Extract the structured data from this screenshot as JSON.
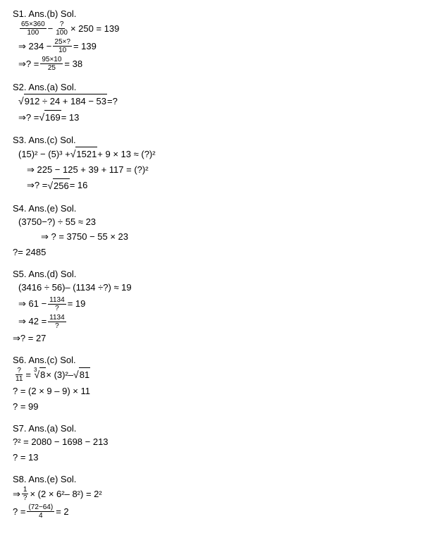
{
  "solutions": [
    {
      "header": "S1. Ans.(b) Sol.",
      "lines": [
        {
          "html": "<span class='frac'><span class='num'>65×360</span><span class='den'>100</span></span> − <span class='frac'><span class='num'>?</span><span class='den'>100</span></span> × 250 = 139",
          "indent": 1
        },
        {
          "html": "⇒ 234 − <span class='frac'><span class='num'>25×?</span><span class='den'>10</span></span> = 139",
          "indent": 1
        },
        {
          "html": "⇒? = <span class='frac'><span class='num'>95×10</span><span class='den'>25</span></span> = 38",
          "indent": 1
        }
      ]
    },
    {
      "header": "S2. Ans.(a) Sol.",
      "lines": [
        {
          "html": "<span class='sqrt'><span class='sqrt-sym'>√</span><span class='sqrt-body'>912 ÷ 24 + 184 − 53</span></span> =?",
          "indent": 1
        },
        {
          "html": "⇒? = <span class='sqrt'><span class='sqrt-sym'>√</span><span class='sqrt-body'>169</span></span> = 13",
          "indent": 1
        }
      ]
    },
    {
      "header": "S3. Ans.(c) Sol.",
      "lines": [
        {
          "html": "(15)² − (5)³ + <span class='sqrt'><span class='sqrt-sym'>√</span><span class='sqrt-body'>1521</span></span> + 9 × 13 ≈ (?)²",
          "indent": 1
        },
        {
          "html": "⇒ 225 − 125 + 39 + 117 = (?)²",
          "indent": 2
        },
        {
          "html": "⇒? = <span class='sqrt'><span class='sqrt-sym'>√</span><span class='sqrt-body'>256</span></span> = 16",
          "indent": 2
        }
      ]
    },
    {
      "header": "S4. Ans.(e) Sol.",
      "lines": [
        {
          "html": "(3750−?) ÷ 55 ≈ 23",
          "indent": 1
        },
        {
          "html": "⇒ ? = 3750 − 55 × 23",
          "indent": 3
        },
        {
          "html": "?= 2485",
          "indent": 0
        }
      ]
    },
    {
      "header": "S5. Ans.(d) Sol.",
      "lines": [
        {
          "html": "(3416 ÷ 56)– (1134 ÷?) ≈ 19",
          "indent": 1
        },
        {
          "html": "⇒ 61 − <span class='frac'><span class='num'>1134</span><span class='den'>?</span></span> = 19",
          "indent": 1
        },
        {
          "html": "⇒ 42 = <span class='frac'><span class='num'>1134</span><span class='den'>?</span></span>",
          "indent": 1
        },
        {
          "html": "⇒? = 27",
          "indent": 0
        }
      ]
    },
    {
      "header": "S6. Ans.(c) Sol.",
      "lines": [
        {
          "html": "<span class='frac'><span class='num'>?</span><span class='den'>11</span></span> = <span class='sqrt3'></span><span class='sqrt'><span class='sqrt-sym'>√</span><span class='sqrt-body'>8</span></span> × (3)²– <span class='sqrt'><span class='sqrt-sym'>√</span><span class='sqrt-body'>81</span></span>",
          "indent": 0
        },
        {
          "html": "? = (2 × 9 – 9) × 11",
          "indent": 0
        },
        {
          "html": "? = 99",
          "indent": 0
        }
      ]
    },
    {
      "header": "S7. Ans.(a) Sol.",
      "lines": [
        {
          "html": "?² = 2080 − 1698 − 213",
          "indent": 0
        },
        {
          "html": "? = 13",
          "indent": 0
        }
      ]
    },
    {
      "header": "S8. Ans.(e) Sol.",
      "lines": [
        {
          "html": "⇒ <span class='frac'><span class='num'>1</span><span class='den'>?</span></span> × (2 × 6²– 8²) = 2²",
          "indent": 0
        },
        {
          "html": "? = <span class='frac'><span class='num'>(72−64)</span><span class='den'>4</span></span> = 2",
          "indent": 0
        }
      ]
    }
  ]
}
